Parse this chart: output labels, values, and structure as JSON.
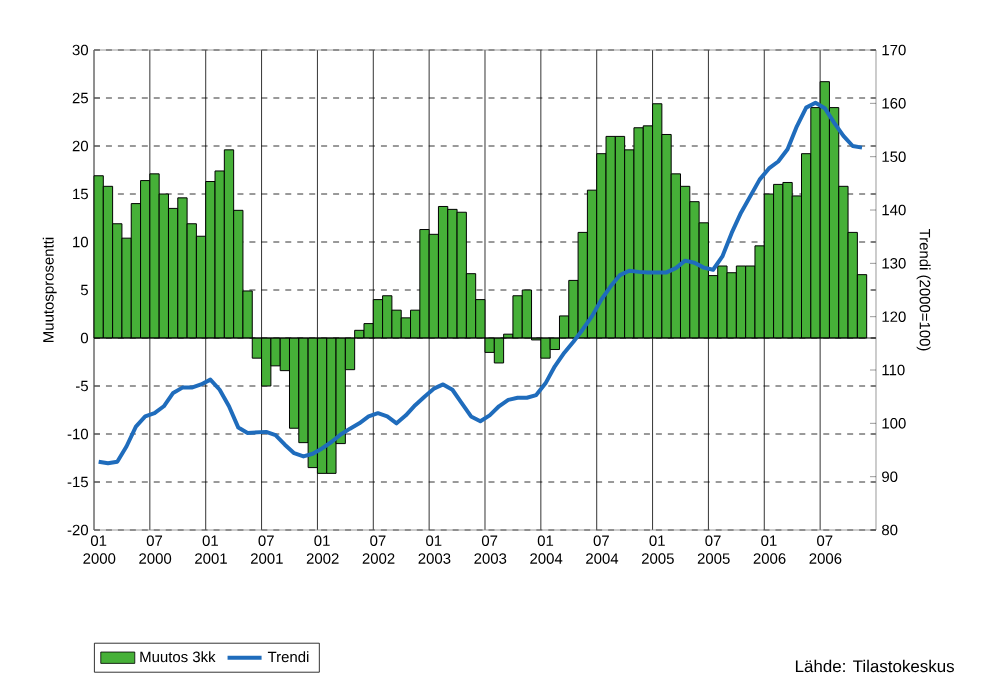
{
  "chart_data": {
    "type": "bar",
    "ylabel": "Muutosprosentti",
    "y2label": "Trendi (2000=100)",
    "categories": [
      "01 2000",
      null,
      null,
      null,
      null,
      null,
      "07 2000",
      null,
      null,
      null,
      null,
      null,
      "01 2001",
      null,
      null,
      null,
      null,
      null,
      "07 2001",
      null,
      null,
      null,
      null,
      null,
      "01 2002",
      null,
      null,
      null,
      null,
      null,
      "07 2002",
      null,
      null,
      null,
      null,
      null,
      "01 2003",
      null,
      null,
      null,
      null,
      null,
      "07 2003",
      null,
      null,
      null,
      null,
      null,
      "01 2004",
      null,
      null,
      null,
      null,
      null,
      "07 2004",
      null,
      null,
      null,
      null,
      null,
      "01 2005",
      null,
      null,
      null,
      null,
      null,
      "07 2005",
      null,
      null,
      null,
      null,
      null,
      "01 2006",
      null,
      null,
      null,
      null,
      null,
      "07 2006",
      null,
      null,
      null,
      null,
      null
    ],
    "series": [
      {
        "name": "Muutos 3kk",
        "type": "bar",
        "color": "#46b038",
        "values": [
          16.9,
          15.8,
          11.9,
          10.4,
          14.0,
          16.4,
          17.1,
          15.0,
          13.5,
          14.6,
          11.9,
          10.6,
          16.3,
          17.4,
          19.6,
          13.3,
          4.9,
          -2.1,
          -5.0,
          -2.9,
          -3.4,
          -9.4,
          -10.9,
          -13.5,
          -14.1,
          -14.1,
          -11.0,
          -3.3,
          0.8,
          1.5,
          4.0,
          4.4,
          2.9,
          2.1,
          2.9,
          11.3,
          10.8,
          13.7,
          13.4,
          13.1,
          6.7,
          4.0,
          -1.5,
          -2.6,
          0.4,
          4.4,
          5.0,
          -0.2,
          -2.1,
          -1.2,
          2.3,
          6.0,
          11.0,
          15.4,
          19.2,
          21.0,
          21.0,
          19.6,
          21.9,
          22.1,
          24.4,
          21.2,
          17.1,
          15.8,
          14.2,
          12.0,
          6.5,
          7.5,
          6.8,
          7.5,
          7.5,
          9.6,
          15.0,
          16.0,
          16.2,
          14.8,
          19.2,
          24.0,
          26.7,
          24.0,
          15.8,
          11.0,
          6.6,
          null
        ]
      },
      {
        "name": "Trendi",
        "type": "line",
        "axis": "y2",
        "color": "#1f6cbc",
        "values": [
          92.8,
          92.5,
          92.8,
          95.7,
          99.4,
          101.3,
          101.9,
          103.2,
          105.7,
          106.7,
          106.7,
          107.3,
          108.2,
          106.3,
          103.2,
          99.2,
          98.2,
          98.3,
          98.4,
          97.8,
          96.0,
          94.4,
          93.8,
          94.3,
          95.3,
          96.5,
          97.9,
          99.0,
          100.0,
          101.3,
          101.9,
          101.3,
          100.0,
          101.5,
          103.4,
          105.0,
          106.5,
          107.3,
          106.3,
          103.8,
          101.3,
          100.4,
          101.5,
          103.2,
          104.4,
          104.8,
          104.8,
          105.3,
          107.5,
          110.7,
          113.2,
          115.3,
          117.6,
          120.1,
          123.2,
          125.7,
          127.8,
          128.6,
          128.4,
          128.3,
          128.3,
          128.3,
          129.1,
          130.5,
          130.1,
          129.2,
          128.8,
          131.3,
          135.7,
          139.5,
          142.6,
          145.7,
          147.8,
          149.1,
          151.4,
          155.7,
          159.2,
          160.1,
          159.1,
          156.4,
          153.9,
          152.0,
          151.7,
          null
        ]
      }
    ],
    "ylim": [
      -20,
      30
    ],
    "yticks": [
      -20,
      -15,
      -10,
      -5,
      0,
      5,
      10,
      15,
      20,
      25,
      30
    ],
    "y2lim": [
      80,
      170
    ],
    "y2ticks": [
      80,
      90,
      100,
      110,
      120,
      130,
      140,
      150,
      160,
      170
    ],
    "grid": true,
    "legend": "bottom left",
    "marker": "none",
    "annotations": [
      "Lähde: Tilastokeskus"
    ]
  }
}
